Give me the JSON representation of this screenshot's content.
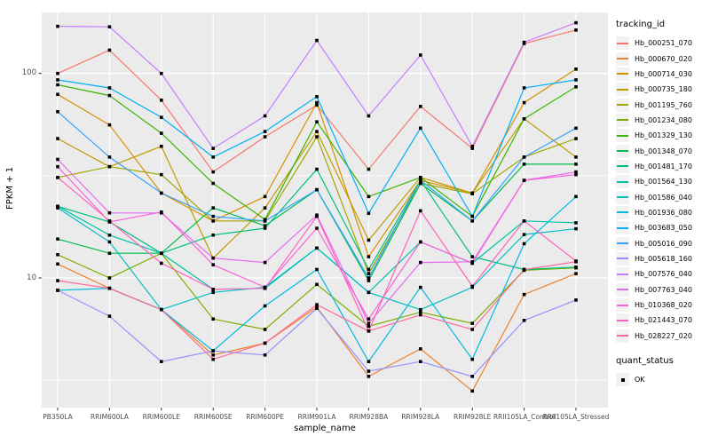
{
  "axes": {
    "y": {
      "title": "FPKM + 1",
      "ticks": [
        "100",
        "10"
      ]
    },
    "x": {
      "title": "sample_name"
    }
  },
  "legend": {
    "tracking_title": "tracking_id",
    "quant_title": "quant_status",
    "quant_items": [
      {
        "label": "OK",
        "marker": "black-square"
      }
    ]
  },
  "colors": {
    "panel_bg": "#EBEBEB",
    "grid": "#FFFFFF",
    "point_marker": "#000000",
    "tick_text": "#4D4D4D",
    "legend_key_bg": "#F2F2F2"
  },
  "chart_data": {
    "type": "line",
    "x_type": "categorical",
    "y_scale": "log10",
    "title": "",
    "xlabel": "sample_name",
    "ylabel": "FPKM + 1",
    "y_ticks": [
      10,
      100
    ],
    "y_minor_ticks": [
      3.162,
      31.62
    ],
    "ylim": [
      2.3,
      200
    ],
    "grid": true,
    "legend_position": "right",
    "point_marker": "filled-black-square",
    "categories": [
      "PB350LA",
      "RRIM600LA",
      "RRIM600LE",
      "RRIM600SE",
      "RRIM600PE",
      "RRIM901LA",
      "RRIM928BA",
      "RRIM928LA",
      "RRIM928LE",
      "RRII105LA_Control",
      "RRII105LA_Stressed"
    ],
    "series": [
      {
        "name": "Hb_000251_070",
        "color": "#F8766D",
        "values": [
          100,
          130,
          74,
          33,
          49,
          70,
          34,
          69,
          43,
          140,
          163
        ]
      },
      {
        "name": "Hb_000670_020",
        "color": "#EA8331",
        "values": [
          11.7,
          8.9,
          7.0,
          4.2,
          4.8,
          7.2,
          3.3,
          4.5,
          2.8,
          8.3,
          10.5
        ]
      },
      {
        "name": "Hb_000714_030",
        "color": "#D89000",
        "values": [
          79,
          56,
          26,
          19,
          25,
          72,
          12.7,
          30,
          26,
          72,
          105
        ]
      },
      {
        "name": "Hb_000735_180",
        "color": "#C09B00",
        "values": [
          48,
          35,
          44,
          12.5,
          22,
          52,
          15.3,
          31,
          26,
          60,
          39
        ]
      },
      {
        "name": "Hb_001195_760",
        "color": "#A3A500",
        "values": [
          31,
          35,
          32,
          19,
          19,
          49,
          10.5,
          29,
          25.8,
          39,
          48
        ]
      },
      {
        "name": "Hb_001234_080",
        "color": "#7CAE00",
        "values": [
          13,
          10,
          13.2,
          6.3,
          5.6,
          9.3,
          5.8,
          6.8,
          6.0,
          10.9,
          11.2
        ]
      },
      {
        "name": "Hb_001329_130",
        "color": "#39B600",
        "values": [
          88,
          78,
          51,
          29,
          19.3,
          58,
          25,
          31,
          20,
          60,
          86
        ]
      },
      {
        "name": "Hb_001348_070",
        "color": "#00BB4E",
        "values": [
          15.5,
          13.2,
          13.2,
          22,
          18,
          27,
          9.7,
          29,
          19,
          36,
          36
        ]
      },
      {
        "name": "Hb_001481_170",
        "color": "#00BF7D",
        "values": [
          22.4,
          18.8,
          13.2,
          16.2,
          17.5,
          34,
          11,
          30,
          12.7,
          11,
          11.3
        ]
      },
      {
        "name": "Hb_001564_130",
        "color": "#00C1A3",
        "values": [
          22.4,
          16.2,
          13.2,
          8.8,
          8.9,
          14,
          8.5,
          15,
          11.8,
          19,
          18.6
        ]
      },
      {
        "name": "Hb_001586_040",
        "color": "#00BFC4",
        "values": [
          22,
          15,
          7.0,
          8.5,
          9.0,
          14,
          8.5,
          7.0,
          9.0,
          16.3,
          17.4
        ]
      },
      {
        "name": "Hb_001936_080",
        "color": "#00BAE0",
        "values": [
          8.7,
          8.9,
          7.0,
          4.4,
          7.3,
          11,
          3.9,
          9,
          4.0,
          14.7,
          25
        ]
      },
      {
        "name": "Hb_003683_050",
        "color": "#00B0F6",
        "values": [
          93,
          85,
          61,
          39,
          52,
          77,
          20.7,
          54,
          20,
          85,
          93
        ]
      },
      {
        "name": "Hb_005016_090",
        "color": "#35A2FF",
        "values": [
          65,
          39,
          26,
          20,
          19,
          27,
          10,
          30,
          19,
          39,
          54
        ]
      },
      {
        "name": "Hb_005618_160",
        "color": "#9590FF",
        "values": [
          8.7,
          6.5,
          3.9,
          4.4,
          4.2,
          7.1,
          3.5,
          3.9,
          3.3,
          6.2,
          7.8
        ]
      },
      {
        "name": "Hb_007576_040",
        "color": "#C77CFF",
        "values": [
          170,
          169,
          100,
          43,
          62,
          145,
          62,
          123,
          44,
          142,
          177
        ]
      },
      {
        "name": "Hb_007763_040",
        "color": "#E76BF3",
        "values": [
          38,
          20.8,
          20.8,
          12.5,
          11.9,
          20.3,
          6.0,
          11.9,
          12.0,
          30,
          33
        ]
      },
      {
        "name": "Hb_010368_020",
        "color": "#FA62DB",
        "values": [
          35,
          18.8,
          21,
          11.6,
          9.0,
          17.5,
          6.3,
          15,
          11.8,
          30,
          32
        ]
      },
      {
        "name": "Hb_021443_070",
        "color": "#FF62BC",
        "values": [
          31,
          19,
          11.8,
          8.8,
          8.9,
          20,
          5.5,
          21.3,
          9.1,
          19,
          12.1
        ]
      },
      {
        "name": "Hb_028227_020",
        "color": "#FF6A98",
        "values": [
          9.7,
          8.9,
          7.0,
          4.0,
          4.8,
          7.4,
          5.5,
          6.6,
          5.6,
          11,
          12
        ]
      }
    ]
  }
}
